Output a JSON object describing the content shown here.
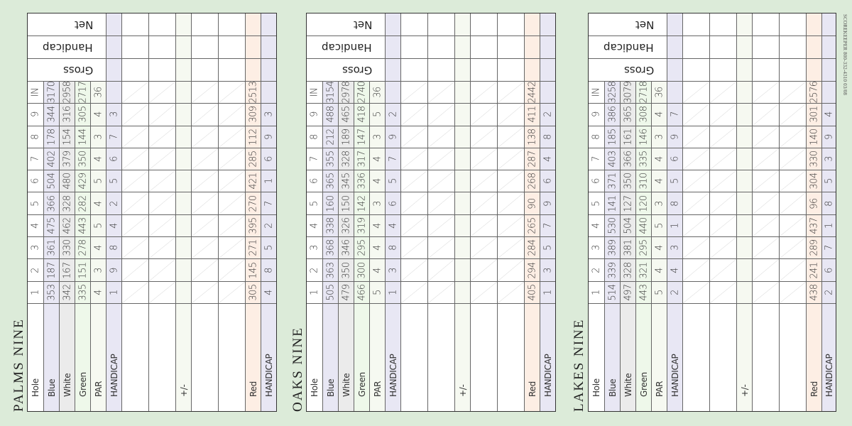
{
  "side_note": "SCOREKEEPER 800-332-4310 03/08",
  "header_rows": [
    "Net",
    "Handicap",
    "Gross"
  ],
  "column_labels": {
    "hole": "Hole",
    "blue": "Blue",
    "white": "White",
    "green": "Green",
    "par": "PAR",
    "handicap": "HANDICAP",
    "plus_minus": "+/-",
    "red": "Red",
    "red_handicap": "HANDICAP"
  },
  "hole_labels": [
    "1",
    "2",
    "3",
    "4",
    "5",
    "6",
    "7",
    "8",
    "9",
    "IN"
  ],
  "colors": {
    "background": "#dcebd9",
    "blue": "#e8e7f4",
    "white": "#ebebeb",
    "green": "#eef8ea",
    "par": "#f6f9f1",
    "handicap": "#e8e7f4",
    "red": "#fdeee4"
  },
  "cards": [
    {
      "title": "PALMS NINE",
      "blue": [
        "353",
        "187",
        "361",
        "475",
        "366",
        "504",
        "402",
        "178",
        "344",
        "3170"
      ],
      "white": [
        "342",
        "167",
        "330",
        "462",
        "328",
        "480",
        "379",
        "154",
        "316",
        "2958"
      ],
      "green": [
        "335",
        "151",
        "278",
        "443",
        "282",
        "429",
        "350",
        "144",
        "305",
        "2717"
      ],
      "par": [
        "4",
        "3",
        "4",
        "5",
        "4",
        "5",
        "4",
        "3",
        "4",
        "36"
      ],
      "handicap": [
        "1",
        "9",
        "8",
        "4",
        "2",
        "5",
        "6",
        "7",
        "3",
        ""
      ],
      "red": [
        "305",
        "145",
        "271",
        "395",
        "270",
        "421",
        "285",
        "112",
        "309",
        "2513"
      ],
      "red_handicap": [
        "4",
        "8",
        "5",
        "2",
        "7",
        "1",
        "6",
        "9",
        "3",
        ""
      ]
    },
    {
      "title": "OAKS NINE",
      "blue": [
        "505",
        "363",
        "368",
        "338",
        "160",
        "365",
        "355",
        "212",
        "488",
        "3154"
      ],
      "white": [
        "479",
        "350",
        "346",
        "326",
        "150",
        "345",
        "328",
        "189",
        "465",
        "2978"
      ],
      "green": [
        "466",
        "300",
        "295",
        "319",
        "142",
        "336",
        "317",
        "147",
        "418",
        "2740"
      ],
      "par": [
        "5",
        "4",
        "4",
        "4",
        "3",
        "4",
        "4",
        "3",
        "5",
        "36"
      ],
      "handicap": [
        "1",
        "3",
        "8",
        "4",
        "6",
        "5",
        "7",
        "9",
        "2",
        ""
      ],
      "red": [
        "405",
        "294",
        "284",
        "265",
        "90",
        "268",
        "287",
        "138",
        "411",
        "2442"
      ],
      "red_handicap": [
        "1",
        "3",
        "5",
        "7",
        "9",
        "6",
        "4",
        "8",
        "2",
        ""
      ]
    },
    {
      "title": "LAKES NINE",
      "blue": [
        "514",
        "339",
        "389",
        "530",
        "141",
        "371",
        "403",
        "185",
        "386",
        "3258"
      ],
      "white": [
        "497",
        "328",
        "381",
        "504",
        "127",
        "350",
        "366",
        "161",
        "365",
        "3079"
      ],
      "green": [
        "443",
        "321",
        "295",
        "440",
        "120",
        "310",
        "335",
        "146",
        "308",
        "2718"
      ],
      "par": [
        "5",
        "4",
        "4",
        "5",
        "3",
        "4",
        "4",
        "3",
        "4",
        "36"
      ],
      "handicap": [
        "2",
        "4",
        "3",
        "1",
        "8",
        "5",
        "6",
        "9",
        "7",
        ""
      ],
      "red": [
        "438",
        "241",
        "289",
        "437",
        "96",
        "304",
        "330",
        "140",
        "301",
        "2576"
      ],
      "red_handicap": [
        "2",
        "6",
        "7",
        "1",
        "8",
        "5",
        "3",
        "9",
        "4",
        ""
      ]
    }
  ]
}
